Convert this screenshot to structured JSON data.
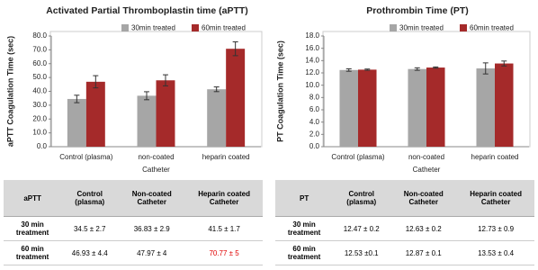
{
  "chart_data": [
    {
      "type": "bar",
      "title": "Activated Partial Thromboplastin time (aPTT)",
      "y_label": "aPTT Coagulation Time (sec)",
      "x_label": "Catheter",
      "categories": [
        "Control (plasma)",
        "non-coated",
        "heparin coated"
      ],
      "series": [
        {
          "name": "30min treated",
          "color": "#a6a6a6",
          "values": [
            34.5,
            36.83,
            41.5
          ],
          "errors": [
            2.7,
            2.9,
            1.7
          ]
        },
        {
          "name": "60min treated",
          "color": "#a52a2a",
          "values": [
            46.93,
            47.97,
            70.77
          ],
          "errors": [
            4.4,
            4,
            5
          ]
        }
      ],
      "ylim": [
        0,
        80
      ],
      "yticks": [
        {
          "value": 0,
          "label": "0.0"
        },
        {
          "value": 10,
          "label": "10.0"
        },
        {
          "value": 20,
          "label": "20.0"
        },
        {
          "value": 30,
          "label": "30.0"
        },
        {
          "value": 40,
          "label": "40.0"
        },
        {
          "value": 50,
          "label": "50.0"
        },
        {
          "value": 60,
          "label": "60.0"
        },
        {
          "value": 70,
          "label": "70.0"
        },
        {
          "value": 80,
          "label": "80.0"
        }
      ],
      "legend": "top"
    },
    {
      "type": "bar",
      "title": "Prothrombin Time (PT)",
      "y_label": "PT Coagulation Time (sec)",
      "x_label": "Catheter",
      "categories": [
        "Control (plasma)",
        "non-coated",
        "heparin coated"
      ],
      "series": [
        {
          "name": "30min treated",
          "color": "#a6a6a6",
          "values": [
            12.47,
            12.63,
            12.73
          ],
          "errors": [
            0.2,
            0.2,
            0.9
          ]
        },
        {
          "name": "60min treated",
          "color": "#a52a2a",
          "values": [
            12.53,
            12.87,
            13.53
          ],
          "errors": [
            0.1,
            0.1,
            0.4
          ]
        }
      ],
      "ylim": [
        0,
        18
      ],
      "yticks": [
        {
          "value": 0,
          "label": "0.0"
        },
        {
          "value": 2,
          "label": "2.0"
        },
        {
          "value": 4,
          "label": "4.0"
        },
        {
          "value": 6,
          "label": "6.0"
        },
        {
          "value": 8,
          "label": "8.0"
        },
        {
          "value": 10,
          "label": "10.0"
        },
        {
          "value": 12,
          "label": "12.0"
        },
        {
          "value": 14,
          "label": "14.0"
        },
        {
          "value": 16,
          "label": "16.0"
        },
        {
          "value": 18,
          "label": "18.0"
        }
      ],
      "legend": "top"
    }
  ],
  "tables": [
    {
      "header": [
        "aPTT",
        "Control (plasma)",
        "Non-coated Catheter",
        "Heparin coated Catheter"
      ],
      "rows": [
        [
          "30 min treatment",
          "34.5 ± 2.7",
          "36.83 ± 2.9",
          "41.5 ± 1.7"
        ],
        [
          "60 min treatment",
          "46.93 ± 4.4",
          "47.97 ± 4",
          "70.77 ± 5"
        ]
      ]
    },
    {
      "header": [
        "PT",
        "Control (plasma)",
        "Non-coated Catheter",
        "Heparin coated Catheter"
      ],
      "rows": [
        [
          "30 min treatment",
          "12.47 ± 0.2",
          "12.63 ± 0.2",
          "12.73 ± 0.9"
        ],
        [
          "60 min treatment",
          "12.53 ±0.1",
          "12.87 ± 0.1",
          "13.53 ± 0.4"
        ]
      ]
    }
  ]
}
